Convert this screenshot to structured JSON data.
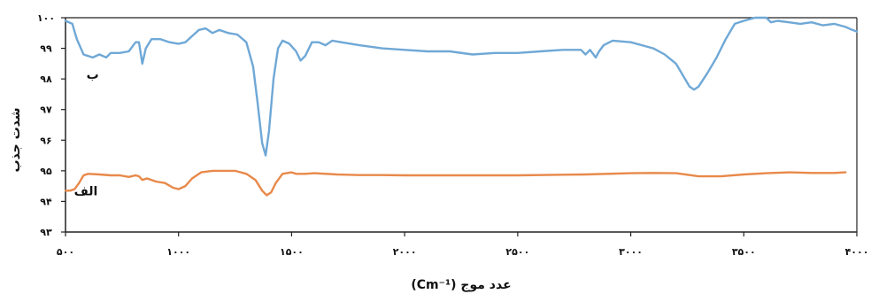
{
  "chart_data": {
    "type": "line",
    "title": "",
    "xlabel": "عدد موج (Cm⁻¹)",
    "ylabel": "شدت جذب",
    "xlim": [
      500,
      4000
    ],
    "ylim": [
      93,
      100
    ],
    "x_ticks": [
      {
        "value": 500,
        "label": "۵۰۰"
      },
      {
        "value": 1000,
        "label": "۱۰۰۰"
      },
      {
        "value": 1500,
        "label": "۱۵۰۰"
      },
      {
        "value": 2000,
        "label": "۲۰۰۰"
      },
      {
        "value": 2500,
        "label": "۲۵۰۰"
      },
      {
        "value": 3000,
        "label": "۳۰۰۰"
      },
      {
        "value": 3500,
        "label": "۳۵۰۰"
      },
      {
        "value": 4000,
        "label": "۴۰۰۰"
      }
    ],
    "y_ticks": [
      {
        "value": 93,
        "label": "۹۳"
      },
      {
        "value": 94,
        "label": "۹۴"
      },
      {
        "value": 95,
        "label": "۹۵"
      },
      {
        "value": 96,
        "label": "۹۶"
      },
      {
        "value": 97,
        "label": "۹۷"
      },
      {
        "value": 98,
        "label": "۹۸"
      },
      {
        "value": 99,
        "label": "۹۹"
      },
      {
        "value": 100,
        "label": "۱۰۰"
      }
    ],
    "grid": false,
    "series": [
      {
        "name": "ب",
        "color": "#6fa8d6",
        "label_at": {
          "x": 620,
          "y": 98.0
        },
        "points": [
          [
            500,
            99.9
          ],
          [
            530,
            99.8
          ],
          [
            550,
            99.3
          ],
          [
            580,
            98.8
          ],
          [
            600,
            98.75
          ],
          [
            620,
            98.7
          ],
          [
            650,
            98.8
          ],
          [
            680,
            98.7
          ],
          [
            700,
            98.85
          ],
          [
            740,
            98.85
          ],
          [
            780,
            98.9
          ],
          [
            810,
            99.2
          ],
          [
            825,
            99.2
          ],
          [
            840,
            98.5
          ],
          [
            855,
            99.0
          ],
          [
            880,
            99.3
          ],
          [
            920,
            99.3
          ],
          [
            960,
            99.2
          ],
          [
            1000,
            99.15
          ],
          [
            1030,
            99.2
          ],
          [
            1060,
            99.4
          ],
          [
            1090,
            99.6
          ],
          [
            1120,
            99.65
          ],
          [
            1150,
            99.5
          ],
          [
            1180,
            99.6
          ],
          [
            1220,
            99.5
          ],
          [
            1260,
            99.45
          ],
          [
            1300,
            99.2
          ],
          [
            1330,
            98.4
          ],
          [
            1350,
            97.2
          ],
          [
            1370,
            95.9
          ],
          [
            1385,
            95.5
          ],
          [
            1400,
            96.3
          ],
          [
            1420,
            98.0
          ],
          [
            1440,
            99.0
          ],
          [
            1460,
            99.25
          ],
          [
            1490,
            99.15
          ],
          [
            1520,
            98.9
          ],
          [
            1540,
            98.6
          ],
          [
            1560,
            98.75
          ],
          [
            1590,
            99.2
          ],
          [
            1620,
            99.2
          ],
          [
            1650,
            99.1
          ],
          [
            1680,
            99.25
          ],
          [
            1720,
            99.2
          ],
          [
            1800,
            99.1
          ],
          [
            1900,
            99.0
          ],
          [
            2000,
            98.95
          ],
          [
            2100,
            98.9
          ],
          [
            2200,
            98.9
          ],
          [
            2300,
            98.8
          ],
          [
            2400,
            98.85
          ],
          [
            2500,
            98.85
          ],
          [
            2600,
            98.9
          ],
          [
            2700,
            98.95
          ],
          [
            2780,
            98.95
          ],
          [
            2800,
            98.8
          ],
          [
            2820,
            98.95
          ],
          [
            2845,
            98.7
          ],
          [
            2860,
            98.9
          ],
          [
            2880,
            99.1
          ],
          [
            2920,
            99.25
          ],
          [
            3000,
            99.2
          ],
          [
            3050,
            99.1
          ],
          [
            3100,
            99.0
          ],
          [
            3150,
            98.8
          ],
          [
            3200,
            98.5
          ],
          [
            3240,
            98.0
          ],
          [
            3260,
            97.75
          ],
          [
            3280,
            97.65
          ],
          [
            3300,
            97.75
          ],
          [
            3340,
            98.2
          ],
          [
            3380,
            98.7
          ],
          [
            3420,
            99.3
          ],
          [
            3460,
            99.8
          ],
          [
            3500,
            99.9
          ],
          [
            3550,
            100.0
          ],
          [
            3600,
            100.0
          ],
          [
            3620,
            99.85
          ],
          [
            3650,
            99.9
          ],
          [
            3700,
            99.85
          ],
          [
            3750,
            99.8
          ],
          [
            3800,
            99.85
          ],
          [
            3850,
            99.75
          ],
          [
            3900,
            99.8
          ],
          [
            3950,
            99.7
          ],
          [
            3980,
            99.6
          ],
          [
            4000,
            99.55
          ]
        ]
      },
      {
        "name": "الف",
        "color": "#e8894a",
        "label_at": {
          "x": 590,
          "y": 94.2
        },
        "points": [
          [
            500,
            94.35
          ],
          [
            520,
            94.35
          ],
          [
            540,
            94.4
          ],
          [
            560,
            94.6
          ],
          [
            580,
            94.85
          ],
          [
            600,
            94.9
          ],
          [
            650,
            94.88
          ],
          [
            700,
            94.85
          ],
          [
            740,
            94.85
          ],
          [
            780,
            94.8
          ],
          [
            810,
            94.85
          ],
          [
            825,
            94.82
          ],
          [
            840,
            94.7
          ],
          [
            860,
            94.75
          ],
          [
            900,
            94.65
          ],
          [
            940,
            94.6
          ],
          [
            975,
            94.45
          ],
          [
            1000,
            94.4
          ],
          [
            1030,
            94.5
          ],
          [
            1060,
            94.75
          ],
          [
            1100,
            94.95
          ],
          [
            1150,
            95.0
          ],
          [
            1200,
            95.0
          ],
          [
            1250,
            95.0
          ],
          [
            1300,
            94.9
          ],
          [
            1340,
            94.7
          ],
          [
            1370,
            94.35
          ],
          [
            1390,
            94.2
          ],
          [
            1410,
            94.3
          ],
          [
            1430,
            94.6
          ],
          [
            1460,
            94.9
          ],
          [
            1500,
            94.95
          ],
          [
            1520,
            94.9
          ],
          [
            1560,
            94.9
          ],
          [
            1600,
            94.92
          ],
          [
            1700,
            94.88
          ],
          [
            1800,
            94.86
          ],
          [
            1900,
            94.86
          ],
          [
            2000,
            94.85
          ],
          [
            2200,
            94.85
          ],
          [
            2500,
            94.85
          ],
          [
            2800,
            94.88
          ],
          [
            3000,
            94.92
          ],
          [
            3100,
            94.93
          ],
          [
            3200,
            94.92
          ],
          [
            3300,
            94.82
          ],
          [
            3400,
            94.82
          ],
          [
            3500,
            94.88
          ],
          [
            3600,
            94.92
          ],
          [
            3700,
            94.95
          ],
          [
            3800,
            94.93
          ],
          [
            3900,
            94.93
          ],
          [
            3950,
            94.95
          ]
        ]
      }
    ]
  }
}
